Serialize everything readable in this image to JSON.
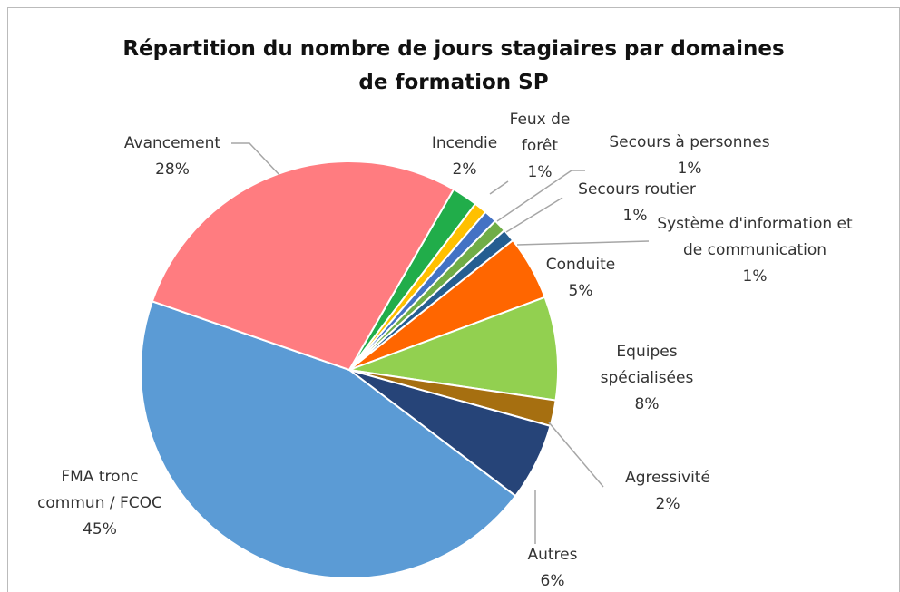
{
  "chart_data": {
    "type": "pie",
    "title": "Répartition du nombre de jours stagiaires par domaines de formation SP",
    "categories": [
      "Incendie",
      "Feux de forêt",
      "Secours à personnes",
      "Secours routier",
      "Système d'information et de communication",
      "Conduite",
      "Equipes spécialisées",
      "Agressivité",
      "Autres",
      "FMA tronc commun / FCOC",
      "Avancement"
    ],
    "values": [
      2,
      1,
      1,
      1,
      1,
      5,
      8,
      2,
      6,
      45,
      28
    ],
    "value_labels": [
      "2%",
      "1%",
      "1%",
      "1%",
      "1%",
      "5%",
      "8%",
      "2%",
      "6%",
      "45%",
      "28%"
    ],
    "colors": [
      "#21ad4a",
      "#ffc000",
      "#4472c4",
      "#70ad47",
      "#255e91",
      "#ff6600",
      "#92d050",
      "#a66f10",
      "#264478",
      "#5b9bd5",
      "#ff7c80"
    ]
  }
}
